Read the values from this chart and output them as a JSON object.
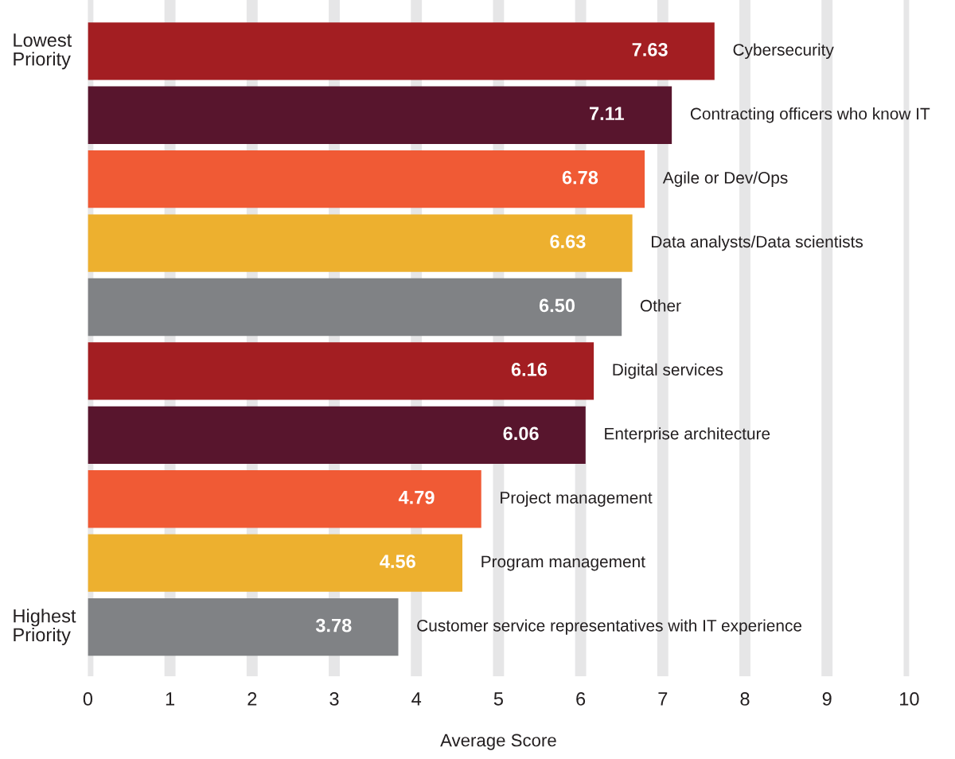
{
  "chart_data": {
    "type": "bar",
    "orientation": "horizontal",
    "categories": [
      "Cybersecurity",
      "Contracting officers who know IT",
      "Agile or Dev/Ops",
      "Data analysts/Data scientists",
      "Other",
      "Digital services",
      "Enterprise architecture",
      "Project management",
      "Program management",
      "Customer service representatives with IT experience"
    ],
    "values": [
      7.63,
      7.11,
      6.78,
      6.63,
      6.5,
      6.16,
      6.06,
      4.79,
      4.56,
      3.78
    ],
    "value_labels": [
      "7.63",
      "7.11",
      "6.78",
      "6.63",
      "6.50",
      "6.16",
      "6.06",
      "4.79",
      "4.56",
      "3.78"
    ],
    "colors": [
      "#a31e22",
      "#58152d",
      "#f05a35",
      "#edb02f",
      "#808285",
      "#a31e22",
      "#58152d",
      "#f05a35",
      "#edb02f",
      "#808285"
    ],
    "xlabel": "Average Score",
    "xlim": [
      0,
      10
    ],
    "xticks": [
      0,
      1,
      2,
      3,
      4,
      5,
      6,
      7,
      8,
      9,
      10
    ],
    "grid": "x",
    "tick_labels": "x",
    "annotations": [
      "Lowest Priority",
      "Highest Priority"
    ]
  }
}
